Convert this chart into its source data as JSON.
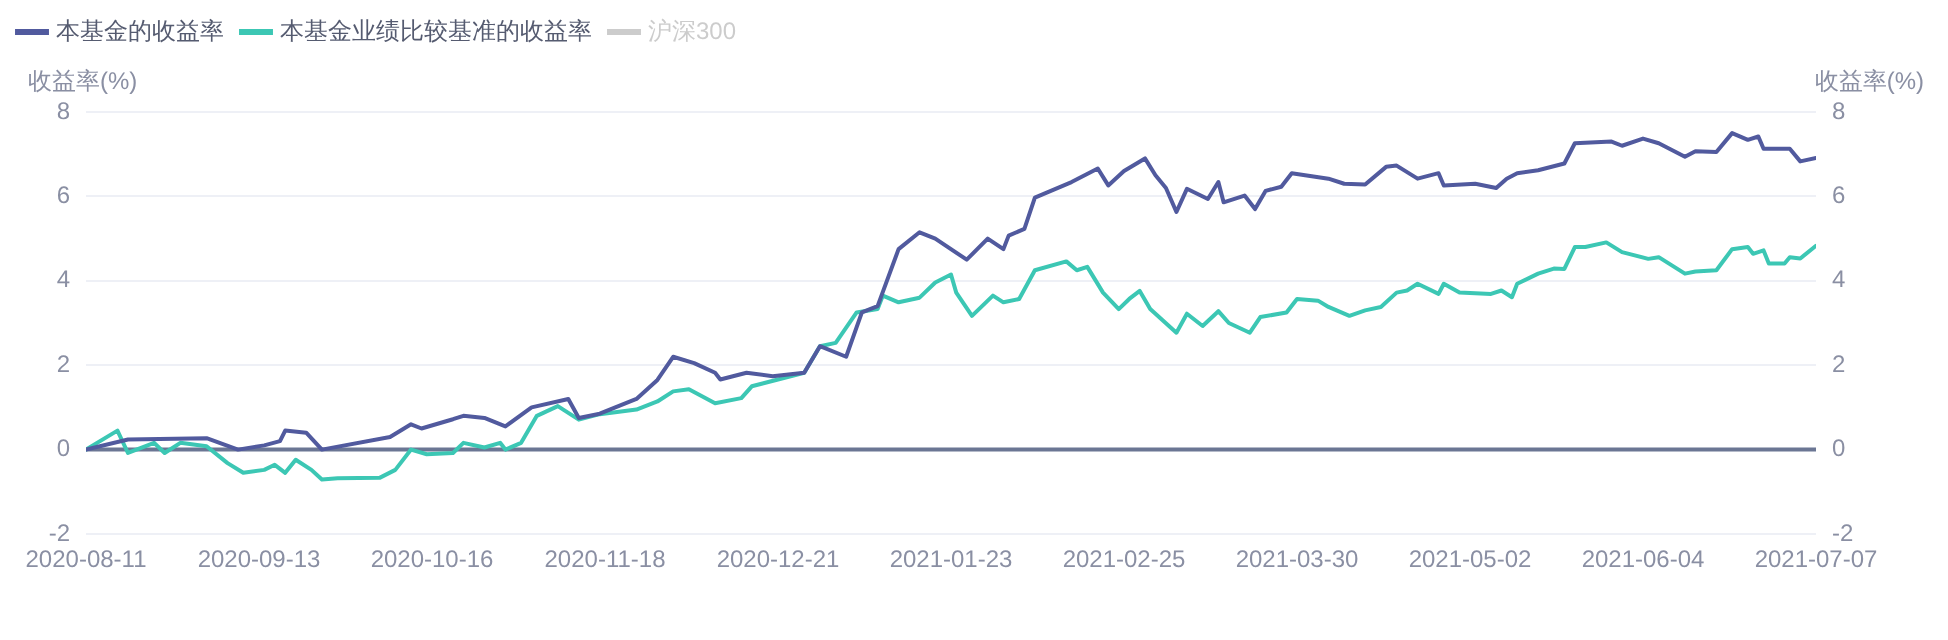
{
  "chart_data": {
    "type": "line",
    "ylabel": "收益率(%)",
    "y2label": "收益率(%)",
    "xlim": [
      "2020-08-11",
      "2021-07-07"
    ],
    "xticks": [
      "2020-08-11",
      "2020-09-13",
      "2020-10-16",
      "2020-11-18",
      "2020-12-21",
      "2021-01-23",
      "2021-02-25",
      "2021-03-30",
      "2021-05-02",
      "2021-06-04",
      "2021-07-07"
    ],
    "ylim": [
      -2,
      8
    ],
    "yticks": [
      -2,
      0,
      2,
      4,
      6,
      8
    ],
    "y2lim": [
      -2,
      8
    ],
    "y2ticks": [
      -2,
      0,
      2,
      4,
      6,
      8
    ],
    "grid": "y",
    "legend": "top left",
    "marker": "none",
    "line_style": "solid",
    "ref_lines": [
      {
        "axis": "y",
        "value": 0,
        "color": "#6b7694"
      }
    ],
    "series": [
      {
        "name": "本基金的收益率",
        "color": "#515a9e",
        "x": [
          "2020-08-11",
          "2020-08-19",
          "2020-09-03",
          "2020-09-09",
          "2020-09-14",
          "2020-09-17",
          "2020-09-18",
          "2020-09-22",
          "2020-09-25",
          "2020-10-08",
          "2020-10-12",
          "2020-10-14",
          "2020-10-20",
          "2020-10-22",
          "2020-10-26",
          "2020-10-30",
          "2020-11-04",
          "2020-11-11",
          "2020-11-13",
          "2020-11-17",
          "2020-11-24",
          "2020-11-28",
          "2020-12-01",
          "2020-12-05",
          "2020-12-09",
          "2020-12-10",
          "2020-12-15",
          "2020-12-20",
          "2020-12-26",
          "2020-12-29",
          "2021-01-03",
          "2021-01-06",
          "2021-01-09",
          "2021-01-13",
          "2021-01-17",
          "2021-01-20",
          "2021-01-26",
          "2021-01-30",
          "2021-02-02",
          "2021-02-03",
          "2021-02-06",
          "2021-02-08",
          "2021-02-15",
          "2021-02-20",
          "2021-02-22",
          "2021-02-25",
          "2021-03-01",
          "2021-03-03",
          "2021-03-05",
          "2021-03-07",
          "2021-03-09",
          "2021-03-13",
          "2021-03-15",
          "2021-03-16",
          "2021-03-20",
          "2021-03-22",
          "2021-03-24",
          "2021-03-27",
          "2021-03-29",
          "2021-04-05",
          "2021-04-08",
          "2021-04-12",
          "2021-04-16",
          "2021-04-18",
          "2021-04-22",
          "2021-04-26",
          "2021-04-27",
          "2021-05-03",
          "2021-05-07",
          "2021-05-09",
          "2021-05-11",
          "2021-05-15",
          "2021-05-20",
          "2021-05-22",
          "2021-05-29",
          "2021-05-31",
          "2021-06-04",
          "2021-06-07",
          "2021-06-12",
          "2021-06-14",
          "2021-06-18",
          "2021-06-21",
          "2021-06-24",
          "2021-06-26",
          "2021-06-27",
          "2021-07-02",
          "2021-07-04",
          "2021-07-07"
        ],
        "values": [
          0,
          0.24,
          0.27,
          0,
          0.1,
          0.2,
          0.45,
          0.4,
          0,
          0.3,
          0.6,
          0.5,
          0.72,
          0.8,
          0.75,
          0.55,
          1.0,
          1.2,
          0.75,
          0.85,
          1.2,
          1.65,
          2.2,
          2.05,
          1.82,
          1.66,
          1.82,
          1.74,
          1.82,
          2.45,
          2.2,
          3.25,
          3.4,
          4.75,
          5.15,
          5.0,
          4.5,
          5.0,
          4.75,
          5.07,
          5.23,
          5.97,
          6.34,
          6.66,
          6.26,
          6.6,
          6.9,
          6.5,
          6.2,
          5.63,
          6.18,
          5.94,
          6.34,
          5.86,
          6.02,
          5.7,
          6.13,
          6.23,
          6.55,
          6.42,
          6.3,
          6.28,
          6.7,
          6.73,
          6.42,
          6.55,
          6.26,
          6.3,
          6.2,
          6.42,
          6.55,
          6.62,
          6.78,
          7.26,
          7.3,
          7.2,
          7.37,
          7.26,
          6.94,
          7.07,
          7.05,
          7.5,
          7.34,
          7.42,
          7.13,
          7.13,
          6.83,
          6.91
        ]
      },
      {
        "name": "本基金业绩比较基准的收益率",
        "color": "#3cc7b4",
        "x": [
          "2020-08-11",
          "2020-08-17",
          "2020-08-19",
          "2020-08-24",
          "2020-08-26",
          "2020-08-29",
          "2020-09-03",
          "2020-09-07",
          "2020-09-10",
          "2020-09-14",
          "2020-09-16",
          "2020-09-18",
          "2020-09-20",
          "2020-09-23",
          "2020-09-25",
          "2020-09-28",
          "2020-10-06",
          "2020-10-09",
          "2020-10-12",
          "2020-10-15",
          "2020-10-20",
          "2020-10-22",
          "2020-10-26",
          "2020-10-29",
          "2020-10-30",
          "2020-11-02",
          "2020-11-05",
          "2020-11-09",
          "2020-11-13",
          "2020-11-17",
          "2020-11-24",
          "2020-11-28",
          "2020-12-01",
          "2020-12-04",
          "2020-12-09",
          "2020-12-14",
          "2020-12-16",
          "2020-12-21",
          "2020-12-26",
          "2020-12-29",
          "2021-01-01",
          "2021-01-05",
          "2021-01-09",
          "2021-01-10",
          "2021-01-13",
          "2021-01-17",
          "2021-01-20",
          "2021-01-23",
          "2021-01-24",
          "2021-01-27",
          "2021-01-31",
          "2021-02-02",
          "2021-02-05",
          "2021-02-08",
          "2021-02-14",
          "2021-02-16",
          "2021-02-18",
          "2021-02-21",
          "2021-02-24",
          "2021-02-26",
          "2021-02-28",
          "2021-03-02",
          "2021-03-07",
          "2021-03-09",
          "2021-03-12",
          "2021-03-15",
          "2021-03-17",
          "2021-03-21",
          "2021-03-23",
          "2021-03-28",
          "2021-03-30",
          "2021-04-03",
          "2021-04-05",
          "2021-04-09",
          "2021-04-12",
          "2021-04-15",
          "2021-04-18",
          "2021-04-20",
          "2021-04-22",
          "2021-04-26",
          "2021-04-27",
          "2021-04-30",
          "2021-05-06",
          "2021-05-08",
          "2021-05-10",
          "2021-05-11",
          "2021-05-15",
          "2021-05-18",
          "2021-05-20",
          "2021-05-22",
          "2021-05-24",
          "2021-05-28",
          "2021-05-31",
          "2021-06-05",
          "2021-06-07",
          "2021-06-12",
          "2021-06-14",
          "2021-06-18",
          "2021-06-21",
          "2021-06-24",
          "2021-06-25",
          "2021-06-27",
          "2021-06-28",
          "2021-07-01",
          "2021-07-02",
          "2021-07-04",
          "2021-07-07"
        ],
        "values": [
          0,
          0.45,
          -0.08,
          0.16,
          -0.08,
          0.16,
          0.08,
          -0.32,
          -0.55,
          -0.48,
          -0.36,
          -0.55,
          -0.24,
          -0.48,
          -0.71,
          -0.68,
          -0.67,
          -0.48,
          0,
          -0.11,
          -0.08,
          0.16,
          0.05,
          0.16,
          0,
          0.16,
          0.8,
          1.03,
          0.71,
          0.84,
          0.95,
          1.14,
          1.38,
          1.43,
          1.1,
          1.22,
          1.5,
          1.66,
          1.82,
          2.45,
          2.53,
          3.25,
          3.33,
          3.65,
          3.49,
          3.6,
          3.96,
          4.15,
          3.72,
          3.17,
          3.65,
          3.49,
          3.57,
          4.25,
          4.46,
          4.25,
          4.33,
          3.72,
          3.33,
          3.57,
          3.76,
          3.33,
          2.77,
          3.22,
          2.93,
          3.28,
          3.0,
          2.77,
          3.14,
          3.25,
          3.57,
          3.53,
          3.38,
          3.17,
          3.3,
          3.38,
          3.72,
          3.77,
          3.93,
          3.69,
          3.93,
          3.72,
          3.69,
          3.77,
          3.61,
          3.93,
          4.17,
          4.29,
          4.28,
          4.8,
          4.8,
          4.91,
          4.68,
          4.52,
          4.56,
          4.17,
          4.22,
          4.25,
          4.75,
          4.8,
          4.64,
          4.72,
          4.41,
          4.41,
          4.56,
          4.53,
          4.83
        ]
      },
      {
        "name": "沪深300",
        "color": "#cccccc"
      }
    ]
  }
}
